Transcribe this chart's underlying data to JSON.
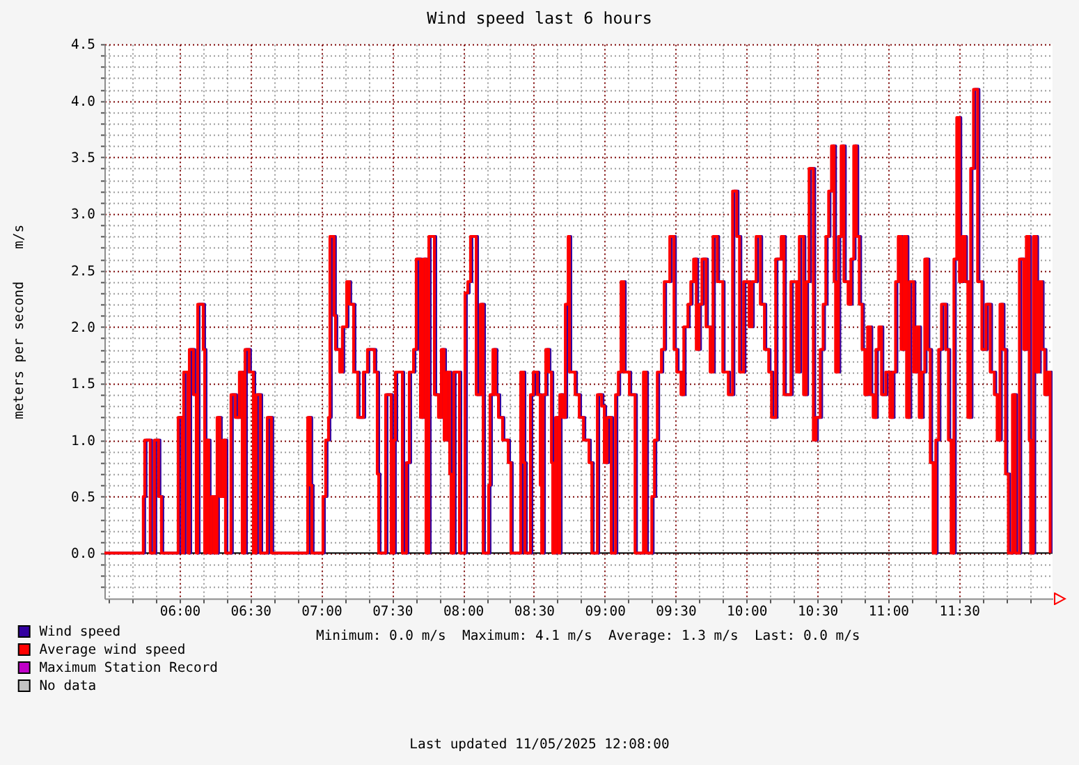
{
  "chart_data": {
    "type": "step",
    "title": "Wind speed last 6 hours",
    "ylabel": "meters per second    m/s",
    "x": [
      5.47,
      5.744,
      5.754,
      5.793,
      5.823,
      5.852,
      5.872,
      5.99,
      6.02,
      6.029,
      6.059,
      6.069,
      6.098,
      6.118,
      6.128,
      6.167,
      6.177,
      6.187,
      6.206,
      6.226,
      6.246,
      6.265,
      6.285,
      6.305,
      6.324,
      6.363,
      6.393,
      6.422,
      6.442,
      6.462,
      6.491,
      6.521,
      6.54,
      6.57,
      6.619,
      6.648,
      6.904,
      6.923,
      6.933,
      7.012,
      7.031,
      7.051,
      7.061,
      7.09,
      7.1,
      7.13,
      7.149,
      7.179,
      7.198,
      7.228,
      7.257,
      7.297,
      7.326,
      7.375,
      7.395,
      7.405,
      7.454,
      7.493,
      7.513,
      7.523,
      7.572,
      7.601,
      7.621,
      7.651,
      7.67,
      7.7,
      7.719,
      7.739,
      7.759,
      7.798,
      7.827,
      7.847,
      7.867,
      7.886,
      7.906,
      7.916,
      7.935,
      7.975,
      8.014,
      8.034,
      8.053,
      8.093,
      8.122,
      8.142,
      8.181,
      8.191,
      8.211,
      8.23,
      8.25,
      8.279,
      8.319,
      8.338,
      8.407,
      8.427,
      8.437,
      8.476,
      8.496,
      8.525,
      8.545,
      8.555,
      8.565,
      8.584,
      8.604,
      8.624,
      8.633,
      8.653,
      8.673,
      8.683,
      8.702,
      8.722,
      8.742,
      8.751,
      8.791,
      8.82,
      8.85,
      8.889,
      8.909,
      8.948,
      8.978,
      8.997,
      9.017,
      9.046,
      9.076,
      9.096,
      9.115,
      9.135,
      9.174,
      9.214,
      9.273,
      9.292,
      9.332,
      9.351,
      9.371,
      9.4,
      9.42,
      9.459,
      9.489,
      9.508,
      9.538,
      9.558,
      9.587,
      9.607,
      9.627,
      9.646,
      9.666,
      9.686,
      9.715,
      9.744,
      9.764,
      9.794,
      9.833,
      9.872,
      9.902,
      9.931,
      9.951,
      9.98,
      10.019,
      10.039,
      10.068,
      10.098,
      10.127,
      10.157,
      10.177,
      10.206,
      10.245,
      10.265,
      10.314,
      10.354,
      10.373,
      10.403,
      10.422,
      10.442,
      10.472,
      10.491,
      10.521,
      10.541,
      10.56,
      10.58,
      10.6,
      10.619,
      10.629,
      10.649,
      10.668,
      10.688,
      10.717,
      10.737,
      10.757,
      10.776,
      10.796,
      10.816,
      10.835,
      10.855,
      10.875,
      10.894,
      10.914,
      10.934,
      10.953,
      10.983,
      11.012,
      11.032,
      11.052,
      11.071,
      11.091,
      11.111,
      11.13,
      11.15,
      11.179,
      11.199,
      11.219,
      11.238,
      11.258,
      11.278,
      11.297,
      11.317,
      11.336,
      11.356,
      11.376,
      11.405,
      11.425,
      11.444,
      11.464,
      11.484,
      11.503,
      11.523,
      11.543,
      11.562,
      11.582,
      11.602,
      11.631,
      11.661,
      11.69,
      11.72,
      11.749,
      11.769,
      11.789,
      11.808,
      11.828,
      11.848,
      11.877,
      11.897,
      11.926,
      11.956,
      11.975,
      11.995,
      12.005,
      12.025,
      12.045,
      12.064,
      12.084,
      12.104,
      12.123,
      12.143
    ],
    "series": [
      {
        "name": "Wind speed",
        "color": "#3300a0",
        "x": [
          5.47,
          5.754,
          5.764,
          5.803,
          5.833,
          5.862,
          5.882,
          6.0,
          6.03,
          6.039,
          6.069,
          6.079,
          6.108,
          6.128,
          6.138,
          6.177,
          6.187,
          6.197,
          6.216,
          6.236,
          6.256,
          6.275,
          6.295,
          6.315,
          6.334,
          6.373,
          6.403,
          6.432,
          6.452,
          6.472,
          6.501,
          6.531,
          6.55,
          6.58,
          6.629,
          6.658,
          6.914,
          6.933,
          6.943,
          7.022,
          7.041,
          7.061,
          7.071,
          7.1,
          7.11,
          7.14,
          7.159,
          7.189,
          7.208,
          7.238,
          7.267,
          7.307,
          7.336,
          7.385,
          7.405,
          7.415,
          7.464,
          7.503,
          7.523,
          7.533,
          7.582,
          7.611,
          7.631,
          7.661,
          7.68,
          7.71,
          7.729,
          7.749,
          7.769,
          7.808,
          7.837,
          7.857,
          7.877,
          7.896,
          7.916,
          7.926,
          7.945,
          7.985,
          8.024,
          8.044,
          8.063,
          8.103,
          8.132,
          8.152,
          8.191,
          8.201,
          8.221,
          8.24,
          8.26,
          8.289,
          8.329,
          8.348,
          8.417,
          8.437,
          8.447,
          8.486,
          8.506,
          8.535,
          8.555,
          8.565,
          8.575,
          8.594,
          8.614,
          8.634,
          8.643,
          8.663,
          8.683,
          8.693,
          8.712,
          8.732,
          8.752,
          8.761,
          8.801,
          8.83,
          8.86,
          8.899,
          8.919,
          8.958,
          8.988,
          9.007,
          9.027,
          9.056,
          9.086,
          9.106,
          9.125,
          9.145,
          9.184,
          9.224,
          9.283,
          9.302,
          9.342,
          9.361,
          9.381,
          9.41,
          9.43,
          9.469,
          9.499,
          9.518,
          9.548,
          9.568,
          9.597,
          9.617,
          9.637,
          9.656,
          9.676,
          9.696,
          9.725,
          9.754,
          9.774,
          9.804,
          9.843,
          9.882,
          9.912,
          9.941,
          9.961,
          9.99,
          10.029,
          10.049,
          10.078,
          10.108,
          10.137,
          10.167,
          10.187,
          10.216,
          10.255,
          10.275,
          10.324,
          10.364,
          10.383,
          10.413,
          10.432,
          10.452,
          10.482,
          10.501,
          10.531,
          10.551,
          10.57,
          10.59,
          10.61,
          10.629,
          10.639,
          10.659,
          10.678,
          10.698,
          10.727,
          10.747,
          10.767,
          10.786,
          10.806,
          10.826,
          10.845,
          10.865,
          10.885,
          10.904,
          10.924,
          10.944,
          10.963,
          10.993,
          11.022,
          11.042,
          11.062,
          11.081,
          11.101,
          11.121,
          11.14,
          11.16,
          11.189,
          11.209,
          11.229,
          11.248,
          11.268,
          11.288,
          11.307,
          11.327,
          11.346,
          11.366,
          11.386,
          11.415,
          11.435,
          11.454,
          11.474,
          11.494,
          11.513,
          11.533,
          11.553,
          11.572,
          11.592,
          11.612,
          11.641,
          11.671,
          11.7,
          11.73,
          11.759,
          11.779,
          11.799,
          11.818,
          11.838,
          11.858,
          11.887,
          11.907,
          11.936,
          11.966,
          11.985,
          12.005,
          12.015,
          12.035,
          12.055,
          12.074,
          12.094,
          12.114,
          12.133,
          12.153
        ],
        "values": [
          0,
          0.5,
          1.0,
          0,
          1.0,
          0.5,
          0,
          1.2,
          0,
          1.6,
          0,
          1.8,
          1.4,
          0,
          2.2,
          1.8,
          0,
          1.0,
          0,
          0.5,
          0,
          1.2,
          0.5,
          1.0,
          0,
          1.4,
          1.2,
          1.6,
          0,
          1.8,
          1.6,
          0,
          1.4,
          0,
          1.2,
          0,
          1.2,
          0.6,
          0,
          0.5,
          1.0,
          1.2,
          2.8,
          2.1,
          1.8,
          1.6,
          2.0,
          2.4,
          2.2,
          1.6,
          1.2,
          1.6,
          1.8,
          1.6,
          0.7,
          0,
          1.4,
          0,
          1.0,
          1.6,
          0,
          0.8,
          1.6,
          1.8,
          2.6,
          1.2,
          2.6,
          0,
          2.8,
          1.4,
          1.2,
          1.8,
          1.0,
          1.6,
          0.7,
          0,
          1.6,
          0,
          2.3,
          2.4,
          2.8,
          1.4,
          2.2,
          0,
          0.6,
          1.4,
          1.8,
          1.4,
          1.2,
          1.0,
          0.8,
          0,
          1.6,
          0.8,
          0,
          1.4,
          1.6,
          1.4,
          0.6,
          0,
          1.4,
          1.8,
          1.6,
          0.8,
          0,
          1.2,
          0,
          1.4,
          1.2,
          2.2,
          2.8,
          1.6,
          1.4,
          1.2,
          1.0,
          0.8,
          0,
          1.4,
          1.3,
          0.8,
          1.2,
          0,
          1.4,
          1.6,
          2.4,
          1.6,
          1.4,
          0,
          1.6,
          0,
          0.5,
          1.0,
          1.6,
          1.8,
          2.4,
          2.8,
          1.8,
          1.6,
          1.4,
          2.0,
          2.2,
          2.4,
          2.6,
          1.8,
          2.2,
          2.6,
          2.0,
          1.6,
          2.8,
          2.4,
          1.6,
          1.4,
          3.2,
          2.8,
          1.6,
          2.4,
          2.0,
          2.4,
          2.8,
          2.2,
          1.8,
          1.6,
          1.2,
          2.6,
          2.8,
          1.4,
          2.4,
          1.6,
          2.8,
          1.4,
          2.4,
          3.4,
          1.0,
          1.2,
          1.8,
          2.2,
          2.8,
          3.2,
          3.6,
          2.4,
          1.6,
          2.8,
          3.6,
          2.4,
          2.2,
          2.6,
          3.6,
          2.8,
          2.2,
          1.8,
          1.4,
          2.0,
          1.4,
          1.2,
          1.8,
          2.0,
          1.4,
          1.6,
          1.2,
          1.6,
          2.4,
          2.8,
          1.8,
          2.8,
          1.2,
          2.4,
          1.6,
          2.0,
          1.2,
          1.6,
          2.6,
          1.8,
          0.8,
          0,
          1.0,
          1.8,
          2.2,
          1.8,
          1.0,
          0,
          2.6,
          3.85,
          2.4,
          2.8,
          2.4,
          1.2,
          3.4,
          4.1,
          2.4,
          1.8,
          2.2,
          1.6,
          1.4,
          1.0,
          2.2,
          1.8,
          0.7,
          0,
          1.4,
          0,
          2.6,
          1.8,
          2.8,
          1.0,
          0,
          2.8,
          1.6,
          2.4,
          1.8,
          1.4,
          1.6,
          0
        ]
      },
      {
        "name": "Average wind speed",
        "color": "#ff0000",
        "values": [
          0,
          0.5,
          1.0,
          0,
          1.0,
          0.5,
          0,
          1.2,
          0,
          1.6,
          0,
          1.8,
          1.4,
          0,
          2.2,
          1.8,
          0,
          1.0,
          0,
          0.5,
          0,
          1.2,
          0.5,
          1.0,
          0,
          1.4,
          1.2,
          1.6,
          0,
          1.8,
          1.6,
          0,
          1.4,
          0,
          1.2,
          0,
          1.2,
          0.6,
          0,
          0.5,
          1.0,
          1.2,
          2.8,
          2.1,
          1.8,
          1.6,
          2.0,
          2.4,
          2.2,
          1.6,
          1.2,
          1.6,
          1.8,
          1.6,
          0.7,
          0,
          1.4,
          0,
          1.0,
          1.6,
          0,
          0.8,
          1.6,
          1.8,
          2.6,
          1.2,
          2.6,
          0,
          2.8,
          1.4,
          1.2,
          1.8,
          1.0,
          1.6,
          0.7,
          0,
          1.6,
          0,
          2.3,
          2.4,
          2.8,
          1.4,
          2.2,
          0,
          0.6,
          1.4,
          1.8,
          1.4,
          1.2,
          1.0,
          0.8,
          0,
          1.6,
          0.8,
          0,
          1.4,
          1.6,
          1.4,
          0.6,
          0,
          1.4,
          1.8,
          1.6,
          0.8,
          0,
          1.2,
          0,
          1.4,
          1.2,
          2.2,
          2.8,
          1.6,
          1.4,
          1.2,
          1.0,
          0.8,
          0,
          1.4,
          1.3,
          0.8,
          1.2,
          0,
          1.4,
          1.6,
          2.4,
          1.6,
          1.4,
          0,
          1.6,
          0,
          0.5,
          1.0,
          1.6,
          1.8,
          2.4,
          2.8,
          1.8,
          1.6,
          1.4,
          2.0,
          2.2,
          2.4,
          2.6,
          1.8,
          2.2,
          2.6,
          2.0,
          1.6,
          2.8,
          2.4,
          1.6,
          1.4,
          3.2,
          2.8,
          1.6,
          2.4,
          2.0,
          2.4,
          2.8,
          2.2,
          1.8,
          1.6,
          1.2,
          2.6,
          2.8,
          1.4,
          2.4,
          1.6,
          2.8,
          1.4,
          2.4,
          3.4,
          1.0,
          1.2,
          1.8,
          2.2,
          2.8,
          3.2,
          3.6,
          2.4,
          1.6,
          2.8,
          3.6,
          2.4,
          2.2,
          2.6,
          3.6,
          2.8,
          2.2,
          1.8,
          1.4,
          2.0,
          1.4,
          1.2,
          1.8,
          2.0,
          1.4,
          1.6,
          1.2,
          1.6,
          2.4,
          2.8,
          1.8,
          2.8,
          1.2,
          2.4,
          1.6,
          2.0,
          1.2,
          1.6,
          2.6,
          1.8,
          0.8,
          0,
          1.0,
          1.8,
          2.2,
          1.8,
          1.0,
          0,
          2.6,
          3.85,
          2.4,
          2.8,
          2.4,
          1.2,
          3.4,
          4.1,
          2.4,
          1.8,
          2.2,
          1.6,
          1.4,
          1.0,
          2.2,
          1.8,
          0.7,
          0,
          1.4,
          0,
          2.6,
          1.8,
          2.8,
          1.0,
          0,
          2.8,
          1.6,
          2.4,
          1.8,
          1.4,
          1.6,
          0
        ]
      },
      {
        "name": "Maximum Station Record",
        "color": "#c000c8",
        "values": [
          null,
          null,
          null,
          null,
          null,
          null,
          null,
          null,
          null,
          null,
          null,
          null,
          null,
          null,
          null,
          null,
          null,
          null,
          null,
          null,
          null,
          null,
          null,
          null,
          null,
          null,
          null,
          null,
          null,
          null,
          null,
          null,
          null,
          null,
          null,
          null,
          null,
          null,
          null,
          null,
          null,
          null,
          null,
          null,
          null,
          null,
          null,
          null,
          null,
          null,
          null,
          null,
          null,
          null,
          null,
          null,
          null,
          null,
          null,
          null,
          null,
          null,
          null,
          null,
          null,
          null,
          null,
          null,
          null,
          null,
          null,
          null,
          null,
          null,
          null,
          null,
          null,
          null,
          null,
          null,
          null,
          null,
          null,
          null,
          null,
          null,
          null,
          null,
          null,
          null,
          null,
          null,
          null,
          null,
          null,
          null,
          null,
          null,
          null,
          null,
          null,
          null,
          null,
          null,
          null,
          null,
          null,
          null,
          null,
          null,
          null,
          null,
          null,
          null,
          null,
          null,
          null,
          null,
          null,
          null,
          null,
          null,
          null,
          null,
          null,
          null,
          null,
          null,
          null,
          null,
          null,
          null,
          null,
          null,
          null,
          null,
          null,
          null,
          null,
          null,
          null,
          null,
          null,
          null,
          null,
          null,
          null,
          null,
          null,
          null,
          null,
          null,
          null,
          null,
          null,
          null,
          null,
          null,
          null,
          null,
          null,
          null,
          null,
          null,
          null,
          null,
          null,
          null,
          null,
          null,
          null,
          null,
          null,
          null,
          null,
          null,
          null,
          null,
          null,
          null,
          null,
          null,
          null,
          null,
          null,
          null,
          null,
          null,
          null,
          null,
          null,
          null,
          null,
          null,
          null,
          null,
          null,
          null,
          null,
          null,
          null,
          null,
          null,
          null,
          null,
          null,
          null,
          null,
          null,
          null,
          null,
          null,
          null,
          null,
          null,
          null,
          null,
          null,
          null,
          null,
          null,
          null,
          null,
          null,
          null,
          null,
          null,
          null,
          null,
          null,
          null,
          null,
          null,
          null,
          null,
          null,
          null,
          null,
          null,
          null,
          null,
          null,
          null,
          null,
          null,
          null,
          null,
          null,
          null,
          null,
          null,
          null
        ]
      },
      {
        "name": "No data",
        "color": "#c4c4c4",
        "values": [
          null,
          null,
          null,
          null,
          null,
          null,
          null,
          null,
          null,
          null,
          null,
          null,
          null,
          null,
          null,
          null,
          null,
          null,
          null,
          null,
          null,
          null,
          null,
          null,
          null,
          null,
          null,
          null,
          null,
          null,
          null,
          null,
          null,
          null,
          null,
          null,
          null,
          null,
          null,
          null,
          null,
          null,
          null,
          null,
          null,
          null,
          null,
          null,
          null,
          null,
          null,
          null,
          null,
          null,
          null,
          null,
          null,
          null,
          null,
          null,
          null,
          null,
          null,
          null,
          null,
          null,
          null,
          null,
          null,
          null,
          null,
          null,
          null,
          null,
          null,
          null,
          null,
          null,
          null,
          null,
          null,
          null,
          null,
          null,
          null,
          null,
          null,
          null,
          null,
          null,
          null,
          null,
          null,
          null,
          null,
          null,
          null,
          null,
          null,
          null,
          null,
          null,
          null,
          null,
          null,
          null,
          null,
          null,
          null,
          null,
          null,
          null,
          null,
          null,
          null,
          null,
          null,
          null,
          null,
          null,
          null,
          null,
          null,
          null,
          null,
          null,
          null,
          null,
          null,
          null,
          null,
          null,
          null,
          null,
          null,
          null,
          null,
          null,
          null,
          null,
          null,
          null,
          null,
          null,
          null,
          null,
          null,
          null,
          null,
          null,
          null,
          null,
          null,
          null,
          null,
          null,
          null,
          null,
          null,
          null,
          null,
          null,
          null,
          null,
          null,
          null,
          null,
          null,
          null,
          null,
          null,
          null,
          null,
          null,
          null,
          null,
          null,
          null,
          null,
          null,
          null,
          null,
          null,
          null,
          null,
          null,
          null,
          null,
          null,
          null,
          null,
          null,
          null,
          null,
          null,
          null,
          null,
          null,
          null,
          null,
          null,
          null,
          null,
          null,
          null,
          null,
          null,
          null,
          null,
          null,
          null,
          null,
          null,
          null,
          null,
          null,
          null,
          null,
          null,
          null,
          null,
          null,
          null,
          null,
          null,
          null,
          null,
          null,
          null,
          null,
          null,
          null,
          null,
          null,
          null,
          null,
          null,
          null,
          null,
          null,
          null,
          null,
          null,
          null,
          null,
          null,
          null,
          null,
          null,
          null,
          null,
          null
        ]
      }
    ],
    "xlim": [
      5.47,
      12.16
    ],
    "xticks": [
      {
        "value": 5.5,
        "label": null
      },
      {
        "value": 5.667,
        "label": null
      },
      {
        "value": 5.833,
        "label": null
      },
      {
        "value": 6,
        "label": "06:00"
      },
      {
        "value": 6.167,
        "label": null
      },
      {
        "value": 6.333,
        "label": null
      },
      {
        "value": 6.5,
        "label": "06:30"
      },
      {
        "value": 6.667,
        "label": null
      },
      {
        "value": 6.833,
        "label": null
      },
      {
        "value": 7,
        "label": "07:00"
      },
      {
        "value": 7.167,
        "label": null
      },
      {
        "value": 7.333,
        "label": null
      },
      {
        "value": 7.5,
        "label": "07:30"
      },
      {
        "value": 7.667,
        "label": null
      },
      {
        "value": 7.833,
        "label": null
      },
      {
        "value": 8,
        "label": "08:00"
      },
      {
        "value": 8.167,
        "label": null
      },
      {
        "value": 8.333,
        "label": null
      },
      {
        "value": 8.5,
        "label": "08:30"
      },
      {
        "value": 8.667,
        "label": null
      },
      {
        "value": 8.833,
        "label": null
      },
      {
        "value": 9,
        "label": "09:00"
      },
      {
        "value": 9.167,
        "label": null
      },
      {
        "value": 9.333,
        "label": null
      },
      {
        "value": 9.5,
        "label": "09:30"
      },
      {
        "value": 9.667,
        "label": null
      },
      {
        "value": 9.833,
        "label": null
      },
      {
        "value": 10,
        "label": "10:00"
      },
      {
        "value": 10.167,
        "label": null
      },
      {
        "value": 10.333,
        "label": null
      },
      {
        "value": 10.5,
        "label": "10:30"
      },
      {
        "value": 10.667,
        "label": null
      },
      {
        "value": 10.833,
        "label": null
      },
      {
        "value": 11,
        "label": "11:00"
      },
      {
        "value": 11.167,
        "label": null
      },
      {
        "value": 11.333,
        "label": null
      },
      {
        "value": 11.5,
        "label": "11:30"
      },
      {
        "value": 11.667,
        "label": null
      },
      {
        "value": 11.833,
        "label": null
      },
      {
        "value": 12,
        "label": null
      }
    ],
    "ylim": [
      -0.4,
      4.5
    ],
    "yticks": [
      {
        "value": -0.3,
        "label": null
      },
      {
        "value": -0.2,
        "label": null
      },
      {
        "value": -0.1,
        "label": null
      },
      {
        "value": 0,
        "label": "0.0"
      },
      {
        "value": 0.1,
        "label": null
      },
      {
        "value": 0.2,
        "label": null
      },
      {
        "value": 0.3,
        "label": null
      },
      {
        "value": 0.4,
        "label": null
      },
      0.5,
      {
        "value": 0.6,
        "label": null
      },
      {
        "value": 0.7,
        "label": null
      },
      {
        "value": 0.8,
        "label": null
      },
      {
        "value": 0.9,
        "label": null
      },
      {
        "value": 1,
        "label": "1.0"
      },
      {
        "value": 1.1,
        "label": null
      },
      {
        "value": 1.2,
        "label": null
      },
      {
        "value": 1.3,
        "label": null
      },
      {
        "value": 1.4,
        "label": null
      },
      1.5,
      {
        "value": 1.6,
        "label": null
      },
      {
        "value": 1.7,
        "label": null
      },
      {
        "value": 1.8,
        "label": null
      },
      {
        "value": 1.9,
        "label": null
      },
      {
        "value": 2,
        "label": "2.0"
      },
      {
        "value": 2.1,
        "label": null
      },
      {
        "value": 2.2,
        "label": null
      },
      {
        "value": 2.3,
        "label": null
      },
      {
        "value": 2.4,
        "label": null
      },
      2.5,
      {
        "value": 2.6,
        "label": null
      },
      {
        "value": 2.7,
        "label": null
      },
      {
        "value": 2.8,
        "label": null
      },
      {
        "value": 2.9,
        "label": null
      },
      {
        "value": 3,
        "label": "3.0"
      },
      {
        "value": 3.1,
        "label": null
      },
      {
        "value": 3.2,
        "label": null
      },
      {
        "value": 3.3,
        "label": null
      },
      {
        "value": 3.4,
        "label": null
      },
      3.5,
      {
        "value": 3.6,
        "label": null
      },
      {
        "value": 3.7,
        "label": null
      },
      {
        "value": 3.8,
        "label": null
      },
      {
        "value": 3.9,
        "label": null
      },
      {
        "value": 4,
        "label": "4.0"
      },
      {
        "value": 4.1,
        "label": null
      },
      {
        "value": 4.2,
        "label": null
      },
      {
        "value": 4.3,
        "label": null
      },
      {
        "value": 4.4,
        "label": null
      },
      4.5
    ],
    "grid": true,
    "legend": "bottom left",
    "ref_lines": [
      {
        "axis": "y",
        "value": 0,
        "color": "#000000"
      }
    ],
    "annotations": [
      "Minimum: 0.0 m/s  Maximum: 4.1 m/s  Average: 1.3 m/s  Last: 0.0 m/s",
      "Last updated 11/05/2025 12:08:00"
    ]
  }
}
